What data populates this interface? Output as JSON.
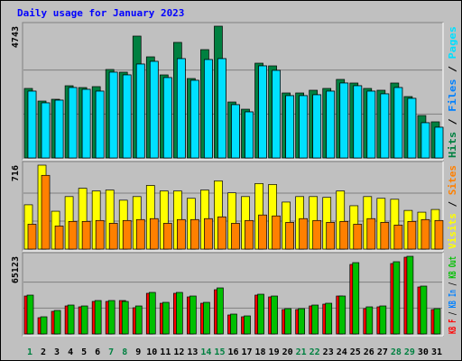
{
  "title": "Daily usage for January 2023",
  "legend_separator": " / ",
  "chart_data": [
    {
      "type": "bar",
      "ylim": [
        0,
        4743
      ],
      "yticks": [
        4743
      ],
      "grid": true,
      "series": [
        {
          "name": "Hits",
          "color": "#008040",
          "values": [
            2502,
            2047,
            2112,
            2599,
            2534,
            2567,
            3184,
            3087,
            4386,
            3639,
            2989,
            4159,
            2859,
            3899,
            4743,
            2014,
            1754,
            3411,
            3314,
            2339,
            2339,
            2437,
            2502,
            2827,
            2697,
            2502,
            2437,
            2697,
            2209,
            1527,
            1300
          ]
        },
        {
          "name": "Files",
          "color": "#0080ff",
          "values": [
            2404,
            1982,
            2079,
            2534,
            2469,
            2404,
            3087,
            2989,
            3379,
            3476,
            2892,
            3574,
            2794,
            3541,
            3574,
            1917,
            1657,
            3314,
            3151,
            2242,
            2242,
            2274,
            2404,
            2697,
            2599,
            2404,
            2307,
            2534,
            2144,
            1267,
            1105
          ]
        },
        {
          "name": "Pages",
          "color": "#00e0ff",
          "values": [
            2404,
            1982,
            2079,
            2534,
            2469,
            2404,
            3087,
            2989,
            3379,
            3476,
            2892,
            3574,
            2794,
            3541,
            3574,
            1917,
            1657,
            3314,
            3151,
            2242,
            2242,
            2274,
            2404,
            2697,
            2599,
            2404,
            2307,
            2534,
            2144,
            1267,
            1105
          ]
        }
      ]
    },
    {
      "type": "bar",
      "ylim": [
        0,
        716
      ],
      "yticks": [
        716
      ],
      "grid": true,
      "series": [
        {
          "name": "Visits",
          "color": "#ffff00",
          "values": [
            378,
            716,
            323,
            448,
            519,
            496,
            504,
            417,
            448,
            543,
            496,
            496,
            433,
            504,
            582,
            480,
            448,
            559,
            551,
            401,
            448,
            448,
            441,
            496,
            370,
            448,
            433,
            425,
            330,
            315,
            338
          ]
        },
        {
          "name": "Sites",
          "color": "#ff8000",
          "values": [
            212,
            629,
            197,
            236,
            236,
            244,
            220,
            244,
            252,
            260,
            220,
            252,
            252,
            260,
            275,
            220,
            244,
            291,
            283,
            228,
            260,
            244,
            228,
            236,
            212,
            260,
            228,
            205,
            236,
            252,
            244
          ]
        }
      ]
    },
    {
      "type": "bar",
      "ylim": [
        0,
        65123
      ],
      "yticks": [
        65123
      ],
      "grid": true,
      "categories": [
        "1",
        "2",
        "3",
        "4",
        "5",
        "6",
        "7",
        "8",
        "9",
        "10",
        "11",
        "12",
        "13",
        "14",
        "15",
        "16",
        "17",
        "18",
        "19",
        "20",
        "21",
        "22",
        "23",
        "24",
        "25",
        "26",
        "27",
        "28",
        "29",
        "30",
        "31"
      ],
      "category_colors": [
        "#008040",
        "#000000",
        "#000000",
        "#000000",
        "#000000",
        "#000000",
        "#008040",
        "#008040",
        "#000000",
        "#000000",
        "#000000",
        "#000000",
        "#000000",
        "#008040",
        "#008040",
        "#000000",
        "#000000",
        "#000000",
        "#000000",
        "#000000",
        "#008040",
        "#008040",
        "#000000",
        "#000000",
        "#000000",
        "#000000",
        "#000000",
        "#008040",
        "#008040",
        "#000000",
        "#000000"
      ],
      "series": [
        {
          "name": "KB F",
          "color": "#ff0000",
          "values": [
            31803,
            13630,
            18931,
            23474,
            22716,
            27260,
            27260,
            28017,
            21960,
            34075,
            25746,
            34075,
            31047,
            25746,
            37104,
            15902,
            14387,
            32561,
            31047,
            20445,
            20445,
            23474,
            24989,
            31803,
            58306,
            21202,
            22716,
            59064,
            64366,
            39376,
            20445
          ]
        },
        {
          "name": "KB In",
          "color": "#0080ff",
          "values": [
            0,
            0,
            0,
            0,
            0,
            0,
            0,
            0,
            0,
            0,
            0,
            0,
            0,
            0,
            0,
            0,
            0,
            0,
            0,
            0,
            0,
            0,
            0,
            0,
            0,
            0,
            0,
            0,
            0,
            0,
            0
          ]
        },
        {
          "name": "KB Out",
          "color": "#00c000",
          "values": [
            32561,
            14387,
            19688,
            24231,
            23474,
            28017,
            28017,
            27260,
            23474,
            34832,
            26503,
            34832,
            31803,
            26503,
            38619,
            16659,
            15144,
            33318,
            31803,
            21202,
            21202,
            24231,
            25746,
            31803,
            59821,
            22716,
            23474,
            60579,
            65123,
            40133,
            21202
          ]
        }
      ]
    }
  ]
}
